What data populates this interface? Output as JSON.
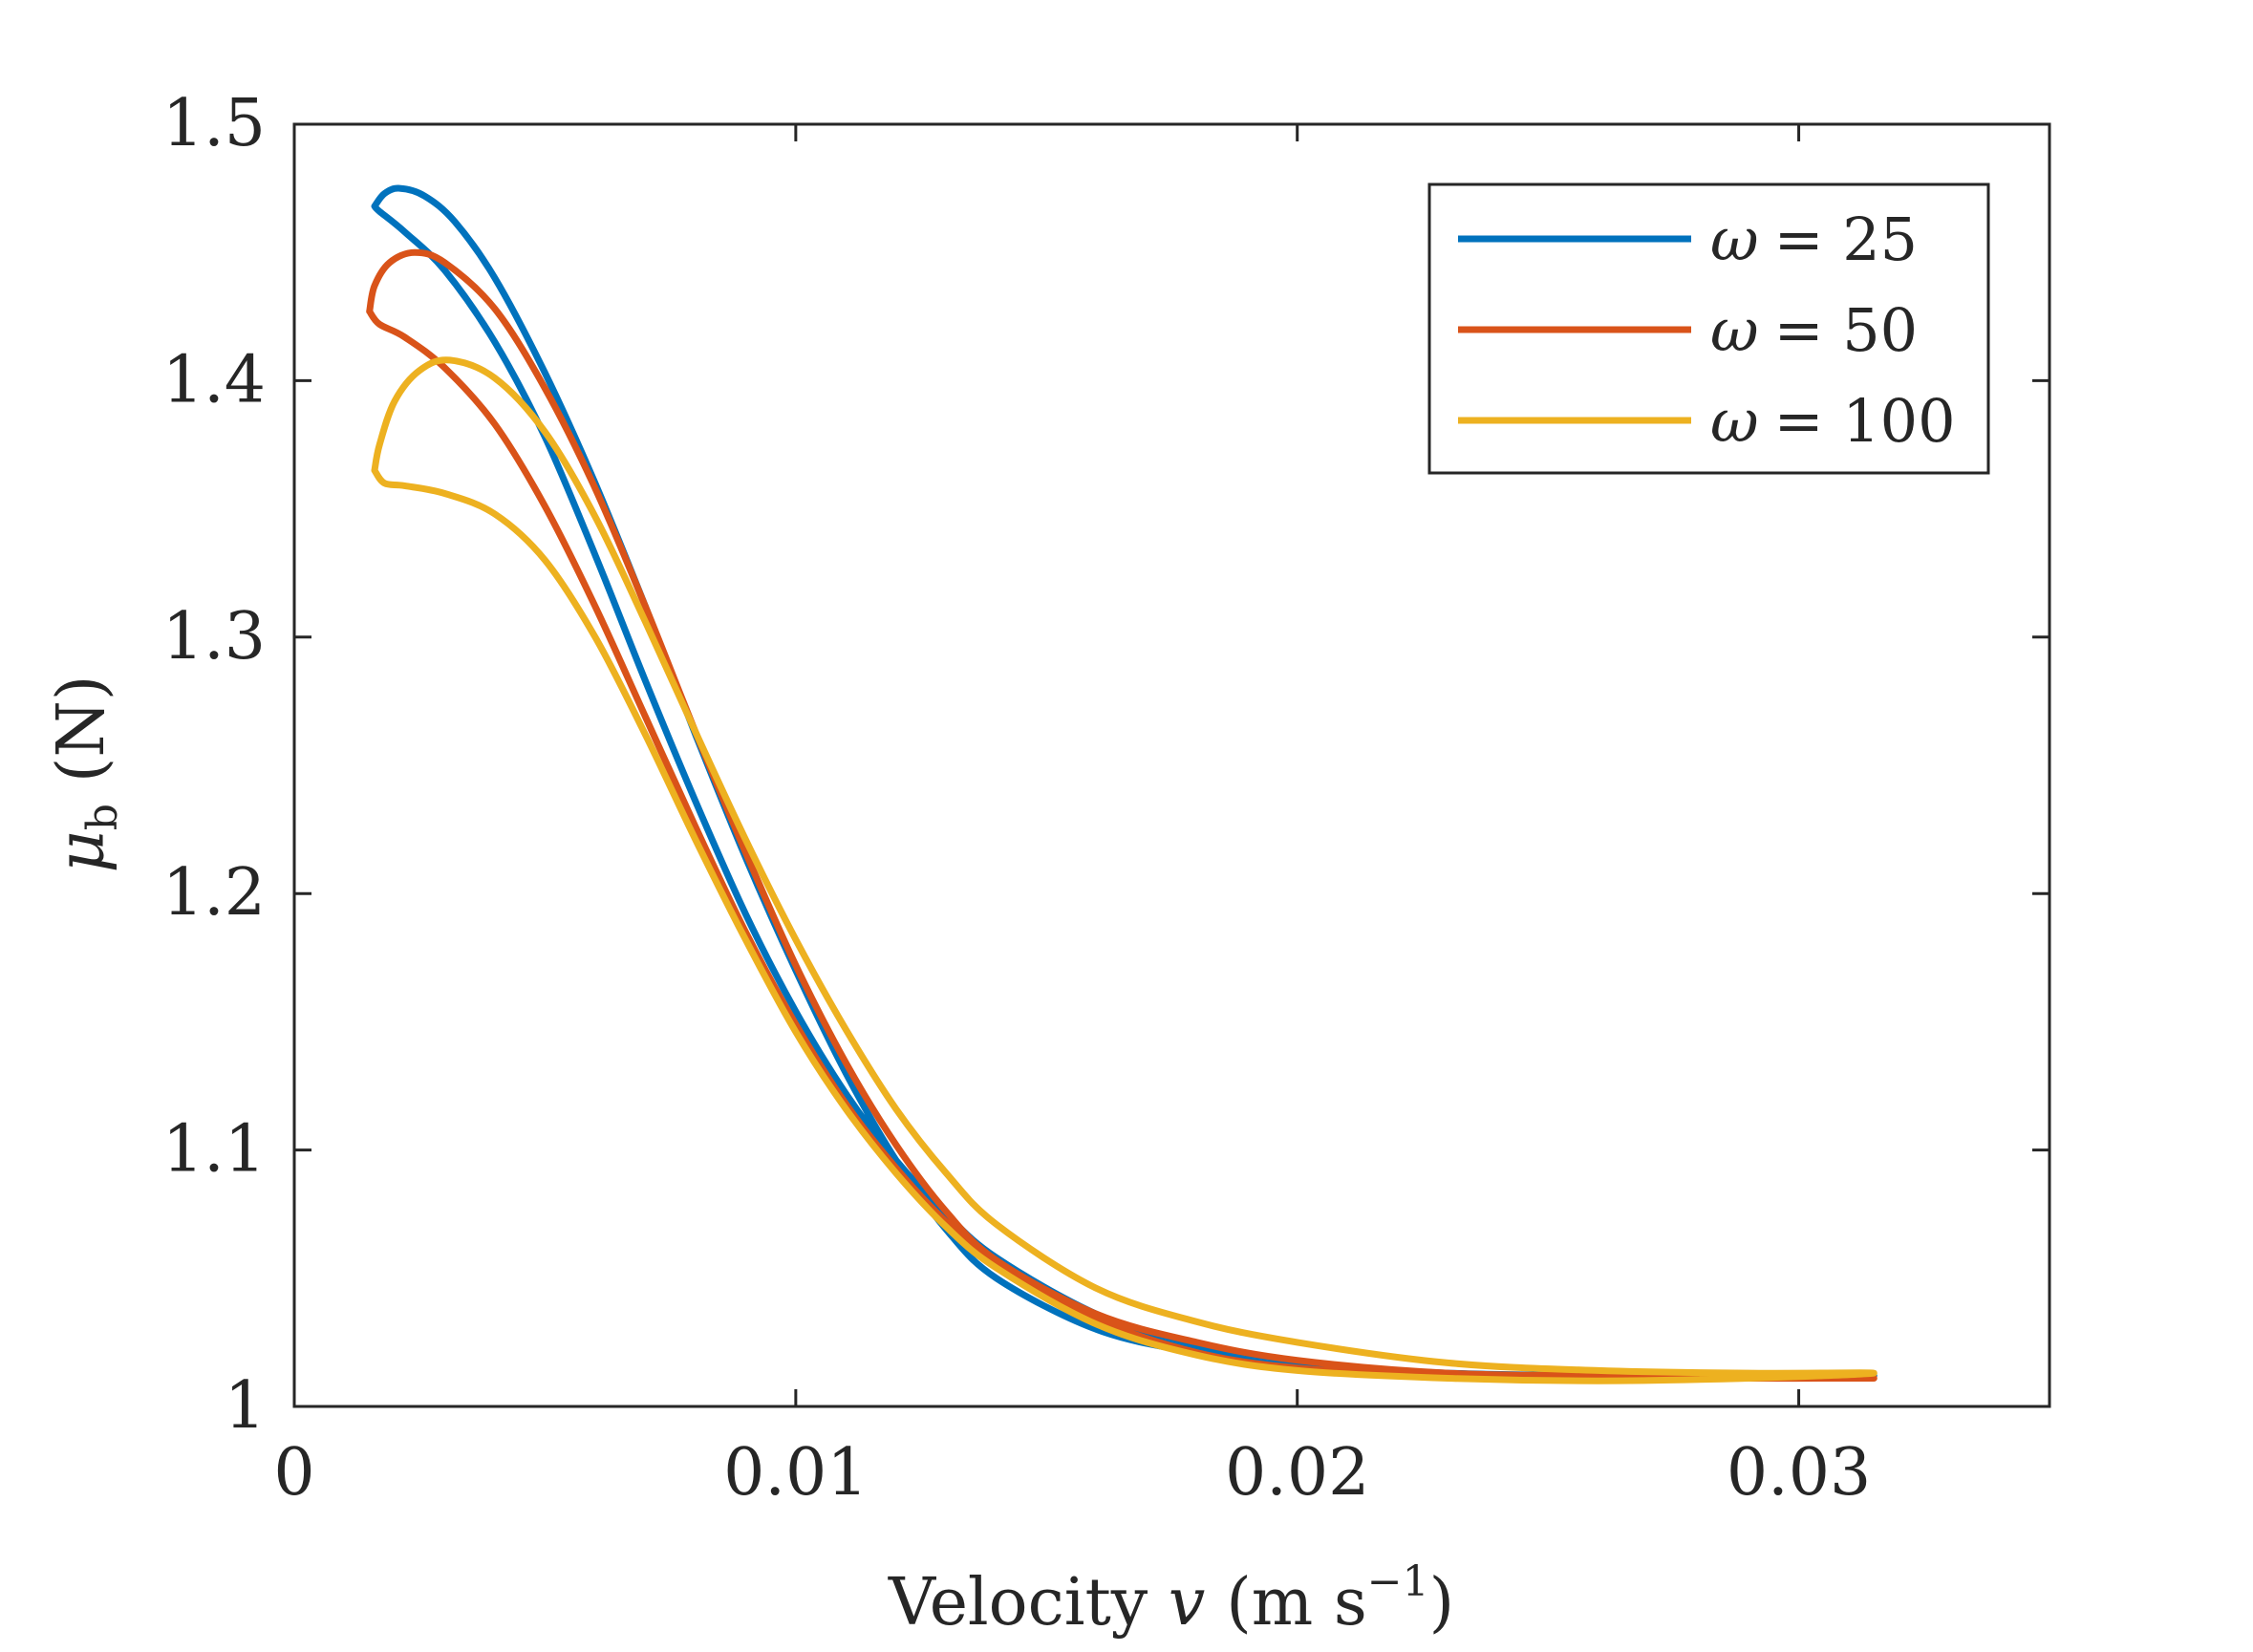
{
  "chart_data": {
    "type": "line",
    "title": "",
    "xlabel": "Velocity v (m s⁻¹)",
    "ylabel": "μ_b (N)",
    "xlabel_parts": {
      "prefix": "Velocity ",
      "var": "v",
      "unit_open": "(m s",
      "exp": "−1",
      "unit_close": ")"
    },
    "ylabel_parts": {
      "sym": "μ",
      "sub": "b",
      "unit": "(N)"
    },
    "xlim": [
      0,
      0.035
    ],
    "ylim": [
      1.0,
      1.5
    ],
    "xticks": [
      0,
      0.01,
      0.02,
      0.03
    ],
    "xtick_labels": [
      "0",
      "0.01",
      "0.02",
      "0.03"
    ],
    "yticks": [
      1.0,
      1.1,
      1.2,
      1.3,
      1.4,
      1.5
    ],
    "ytick_labels": [
      "1",
      "1.1",
      "1.2",
      "1.3",
      "1.4",
      "1.5"
    ],
    "grid": false,
    "legend_position": "top-right",
    "legend": [
      {
        "omega": "ω",
        "eq": "= 25"
      },
      {
        "omega": "ω",
        "eq": "= 50"
      },
      {
        "omega": "ω",
        "eq": "= 100"
      }
    ],
    "series": [
      {
        "name": "ω = 25",
        "color": "#0072BD",
        "points": [
          [
            0.0016,
            1.468
          ],
          [
            0.0018,
            1.473
          ],
          [
            0.0021,
            1.475
          ],
          [
            0.0026,
            1.472
          ],
          [
            0.0032,
            1.462
          ],
          [
            0.004,
            1.44
          ],
          [
            0.005,
            1.403
          ],
          [
            0.006,
            1.36
          ],
          [
            0.007,
            1.312
          ],
          [
            0.008,
            1.262
          ],
          [
            0.009,
            1.214
          ],
          [
            0.01,
            1.17
          ],
          [
            0.011,
            1.13
          ],
          [
            0.012,
            1.096
          ],
          [
            0.013,
            1.069
          ],
          [
            0.014,
            1.05
          ],
          [
            0.016,
            1.03
          ],
          [
            0.018,
            1.021
          ],
          [
            0.02,
            1.016
          ],
          [
            0.023,
            1.013
          ],
          [
            0.026,
            1.012
          ],
          [
            0.029,
            1.012
          ],
          [
            0.0315,
            1.012
          ],
          [
            0.029,
            1.012
          ],
          [
            0.026,
            1.012
          ],
          [
            0.023,
            1.013
          ],
          [
            0.02,
            1.017
          ],
          [
            0.018,
            1.023
          ],
          [
            0.016,
            1.036
          ],
          [
            0.014,
            1.058
          ],
          [
            0.013,
            1.075
          ],
          [
            0.012,
            1.096
          ],
          [
            0.011,
            1.122
          ],
          [
            0.01,
            1.154
          ],
          [
            0.009,
            1.192
          ],
          [
            0.008,
            1.236
          ],
          [
            0.007,
            1.283
          ],
          [
            0.006,
            1.332
          ],
          [
            0.005,
            1.378
          ],
          [
            0.004,
            1.415
          ],
          [
            0.003,
            1.443
          ],
          [
            0.0022,
            1.458
          ],
          [
            0.0017,
            1.466
          ],
          [
            0.0016,
            1.468
          ]
        ]
      },
      {
        "name": "ω = 50",
        "color": "#D95319",
        "points": [
          [
            0.0015,
            1.427
          ],
          [
            0.0016,
            1.437
          ],
          [
            0.0019,
            1.446
          ],
          [
            0.0024,
            1.45
          ],
          [
            0.003,
            1.446
          ],
          [
            0.004,
            1.428
          ],
          [
            0.005,
            1.397
          ],
          [
            0.006,
            1.358
          ],
          [
            0.007,
            1.312
          ],
          [
            0.008,
            1.263
          ],
          [
            0.009,
            1.216
          ],
          [
            0.01,
            1.172
          ],
          [
            0.011,
            1.134
          ],
          [
            0.012,
            1.102
          ],
          [
            0.013,
            1.076
          ],
          [
            0.014,
            1.057
          ],
          [
            0.016,
            1.036
          ],
          [
            0.018,
            1.025
          ],
          [
            0.02,
            1.018
          ],
          [
            0.023,
            1.013
          ],
          [
            0.026,
            1.012
          ],
          [
            0.029,
            1.012
          ],
          [
            0.0315,
            1.011
          ],
          [
            0.029,
            1.011
          ],
          [
            0.026,
            1.011
          ],
          [
            0.023,
            1.012
          ],
          [
            0.02,
            1.015
          ],
          [
            0.018,
            1.021
          ],
          [
            0.016,
            1.034
          ],
          [
            0.014,
            1.056
          ],
          [
            0.013,
            1.072
          ],
          [
            0.012,
            1.093
          ],
          [
            0.011,
            1.118
          ],
          [
            0.01,
            1.149
          ],
          [
            0.009,
            1.185
          ],
          [
            0.008,
            1.226
          ],
          [
            0.007,
            1.269
          ],
          [
            0.006,
            1.312
          ],
          [
            0.005,
            1.351
          ],
          [
            0.004,
            1.383
          ],
          [
            0.003,
            1.405
          ],
          [
            0.0022,
            1.417
          ],
          [
            0.0017,
            1.422
          ],
          [
            0.0015,
            1.427
          ]
        ]
      },
      {
        "name": "ω = 100",
        "color": "#EDB120",
        "points": [
          [
            0.0016,
            1.365
          ],
          [
            0.0017,
            1.375
          ],
          [
            0.002,
            1.392
          ],
          [
            0.0025,
            1.404
          ],
          [
            0.0031,
            1.408
          ],
          [
            0.004,
            1.401
          ],
          [
            0.005,
            1.38
          ],
          [
            0.006,
            1.347
          ],
          [
            0.007,
            1.306
          ],
          [
            0.008,
            1.263
          ],
          [
            0.009,
            1.221
          ],
          [
            0.01,
            1.182
          ],
          [
            0.011,
            1.147
          ],
          [
            0.012,
            1.116
          ],
          [
            0.013,
            1.091
          ],
          [
            0.014,
            1.071
          ],
          [
            0.016,
            1.046
          ],
          [
            0.018,
            1.033
          ],
          [
            0.02,
            1.025
          ],
          [
            0.023,
            1.017
          ],
          [
            0.026,
            1.014
          ],
          [
            0.029,
            1.013
          ],
          [
            0.0315,
            1.013
          ],
          [
            0.029,
            1.011
          ],
          [
            0.026,
            1.01
          ],
          [
            0.023,
            1.011
          ],
          [
            0.02,
            1.014
          ],
          [
            0.018,
            1.02
          ],
          [
            0.016,
            1.032
          ],
          [
            0.014,
            1.054
          ],
          [
            0.013,
            1.07
          ],
          [
            0.012,
            1.091
          ],
          [
            0.011,
            1.116
          ],
          [
            0.01,
            1.146
          ],
          [
            0.009,
            1.182
          ],
          [
            0.008,
            1.221
          ],
          [
            0.007,
            1.262
          ],
          [
            0.006,
            1.3
          ],
          [
            0.005,
            1.33
          ],
          [
            0.004,
            1.348
          ],
          [
            0.003,
            1.356
          ],
          [
            0.0022,
            1.359
          ],
          [
            0.0018,
            1.36
          ],
          [
            0.0016,
            1.365
          ]
        ]
      }
    ]
  }
}
